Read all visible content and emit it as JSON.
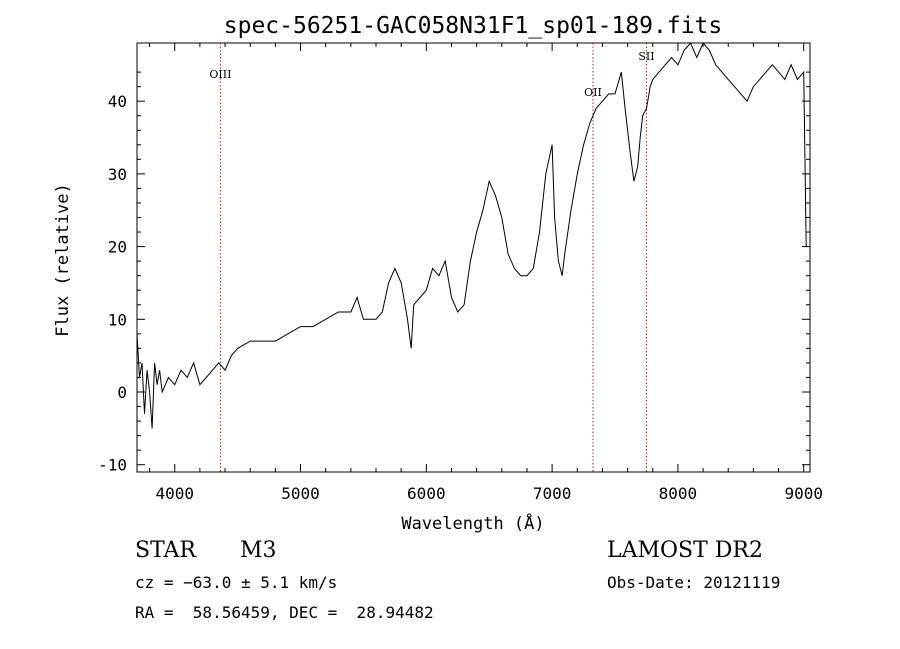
{
  "chart_data": {
    "type": "line",
    "title": "spec-56251-GAC058N31F1_sp01-189.fits",
    "xlabel": "Wavelength (Å)",
    "ylabel": "Flux (relative)",
    "xlim": [
      3700,
      9050
    ],
    "ylim": [
      -11,
      48
    ],
    "x_ticks": [
      4000,
      5000,
      6000,
      7000,
      8000,
      9000
    ],
    "y_ticks": [
      -10,
      0,
      10,
      20,
      30,
      40
    ],
    "series": [
      {
        "name": "flux",
        "x": [
          3700,
          3720,
          3740,
          3760,
          3780,
          3800,
          3820,
          3840,
          3860,
          3880,
          3900,
          3950,
          4000,
          4050,
          4100,
          4150,
          4200,
          4250,
          4300,
          4350,
          4400,
          4450,
          4500,
          4600,
          4700,
          4800,
          4900,
          5000,
          5100,
          5200,
          5300,
          5400,
          5450,
          5500,
          5600,
          5650,
          5700,
          5750,
          5800,
          5850,
          5880,
          5900,
          5950,
          6000,
          6050,
          6100,
          6150,
          6200,
          6250,
          6300,
          6350,
          6400,
          6450,
          6500,
          6550,
          6600,
          6650,
          6700,
          6750,
          6800,
          6850,
          6900,
          6950,
          7000,
          7020,
          7050,
          7080,
          7100,
          7150,
          7200,
          7250,
          7300,
          7350,
          7400,
          7450,
          7500,
          7550,
          7580,
          7600,
          7620,
          7650,
          7680,
          7700,
          7720,
          7750,
          7780,
          7800,
          7850,
          7900,
          7950,
          8000,
          8050,
          8100,
          8150,
          8200,
          8250,
          8300,
          8350,
          8400,
          8450,
          8500,
          8550,
          8600,
          8650,
          8700,
          8750,
          8800,
          8850,
          8900,
          8950,
          9000,
          9020
        ],
        "y": [
          8,
          2,
          4,
          -3,
          3,
          0,
          -5,
          4,
          1,
          3,
          0,
          2,
          1,
          3,
          2,
          4,
          1,
          2,
          3,
          4,
          3,
          5,
          6,
          7,
          7,
          7,
          8,
          9,
          9,
          10,
          11,
          11,
          13,
          10,
          10,
          11,
          15,
          17,
          15,
          10,
          6,
          12,
          13,
          14,
          17,
          16,
          18,
          13,
          11,
          12,
          18,
          22,
          25,
          29,
          27,
          24,
          19,
          17,
          16,
          16,
          17,
          22,
          30,
          34,
          24,
          18,
          16,
          19,
          25,
          30,
          34,
          37,
          39,
          40,
          41,
          41,
          44,
          39,
          36,
          33,
          29,
          31,
          35,
          38,
          39,
          42,
          43,
          44,
          45,
          46,
          45,
          47,
          48,
          46,
          48,
          47,
          45,
          44,
          43,
          42,
          41,
          40,
          42,
          43,
          44,
          45,
          44,
          43,
          45,
          43,
          44,
          20
        ],
        "color": "#000000"
      }
    ],
    "lines": [
      {
        "label": "OIII",
        "x": 4363
      },
      {
        "label": "OII",
        "x": 7325
      },
      {
        "label": "SII",
        "x": 7750
      }
    ]
  },
  "info": {
    "object_type": "STAR",
    "subclass": "M3",
    "survey": "LAMOST DR2",
    "velocity": "cz = −63.0 ± 5.1 km/s",
    "obs_date": "Obs-Date: 20121119",
    "coords": "RA =  58.56459, DEC =  28.94482"
  }
}
